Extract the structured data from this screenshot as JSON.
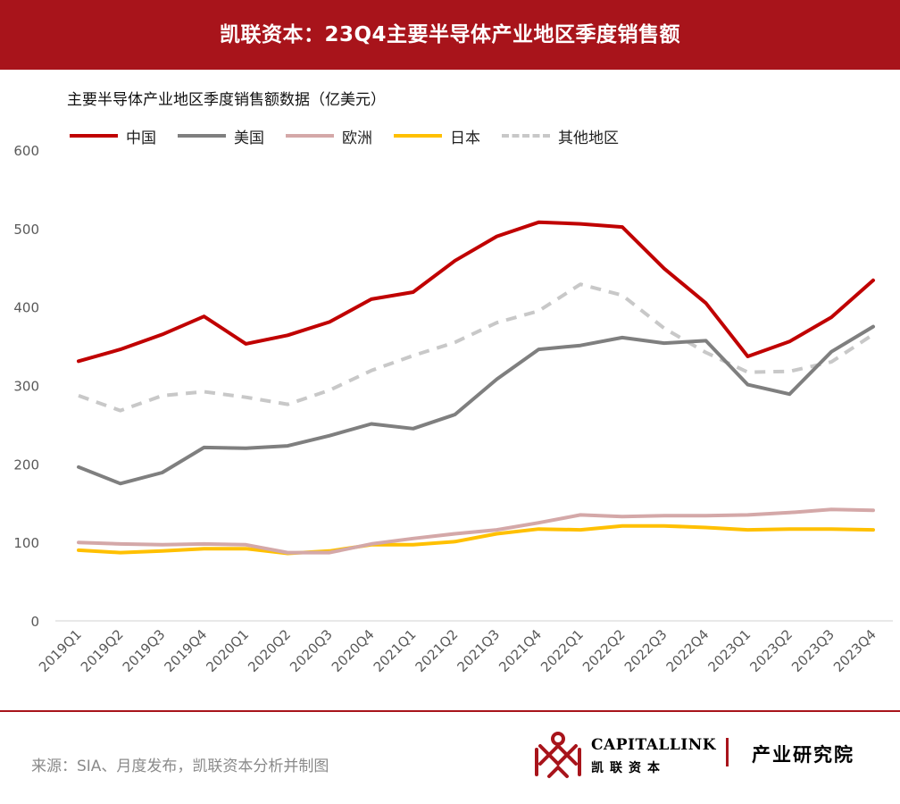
{
  "header": {
    "title": "凯联资本：23Q4主要半导体产业地区季度销售额"
  },
  "chart_data": {
    "type": "line",
    "title": "主要半导体产业地区季度销售额数据（亿美元）",
    "xlabel": "",
    "ylabel": "",
    "ylim": [
      0,
      600
    ],
    "yticks": [
      0,
      100,
      200,
      300,
      400,
      500,
      600
    ],
    "grid": false,
    "legend_position": "top-left",
    "categories": [
      "2019Q1",
      "2019Q2",
      "2019Q3",
      "2019Q4",
      "2020Q1",
      "2020Q2",
      "2020Q3",
      "2020Q4",
      "2021Q1",
      "2021Q2",
      "2021Q3",
      "2021Q4",
      "2022Q1",
      "2022Q2",
      "2022Q3",
      "2022Q4",
      "2023Q1",
      "2023Q2",
      "2023Q3",
      "2023Q4"
    ],
    "series": [
      {
        "name": "中国",
        "color": "#c00000",
        "dashed": false,
        "values": [
          331,
          346,
          365,
          388,
          353,
          364,
          381,
          410,
          419,
          459,
          490,
          508,
          506,
          502,
          449,
          405,
          337,
          356,
          387,
          434
        ]
      },
      {
        "name": "美国",
        "color": "#7f7f7f",
        "dashed": false,
        "values": [
          196,
          175,
          189,
          221,
          220,
          223,
          236,
          251,
          245,
          263,
          308,
          346,
          351,
          361,
          354,
          357,
          301,
          289,
          343,
          375
        ]
      },
      {
        "name": "欧洲",
        "color": "#d4a8a8",
        "dashed": false,
        "values": [
          100,
          98,
          97,
          98,
          97,
          87,
          87,
          98,
          105,
          111,
          116,
          125,
          135,
          133,
          134,
          134,
          135,
          138,
          142,
          141
        ]
      },
      {
        "name": "日本",
        "color": "#ffc000",
        "dashed": false,
        "values": [
          90,
          87,
          89,
          92,
          92,
          86,
          89,
          97,
          97,
          101,
          111,
          117,
          116,
          121,
          121,
          119,
          116,
          117,
          117,
          116
        ]
      },
      {
        "name": "其他地区",
        "color": "#c8c8c8",
        "dashed": true,
        "values": [
          287,
          268,
          287,
          292,
          285,
          276,
          294,
          319,
          338,
          355,
          380,
          395,
          429,
          415,
          373,
          342,
          317,
          318,
          330,
          365
        ]
      }
    ]
  },
  "footer": {
    "source": "来源：SIA、月度发布，凯联资本分析并制图",
    "brand_en": "CAPITALLINK",
    "brand_cn": "凯联资本",
    "brand_unit": "产业研究院"
  }
}
